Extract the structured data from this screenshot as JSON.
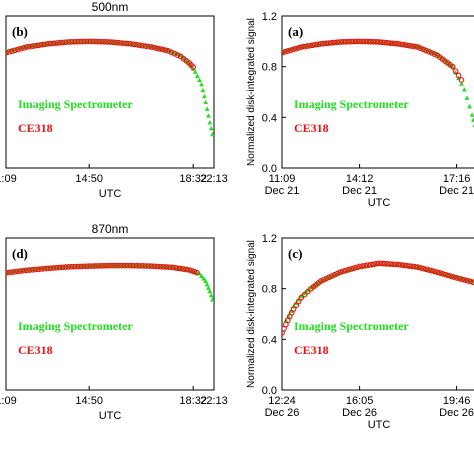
{
  "chart_data": [
    {
      "type": "scatter",
      "panel_label": "(b)",
      "title": "500nm",
      "xlabel": "UTC",
      "ylabel": "",
      "x_tick_labels": [
        "1:09",
        "14:50",
        "18:32",
        "22:13"
      ],
      "x_tick_dates": [],
      "y_tick_labels": [],
      "ylim": [
        0.0,
        1.2
      ],
      "legend": [
        "Imaging Spectrometer",
        "CE318"
      ],
      "series": [
        {
          "name": "Imaging Spectrometer",
          "color": "#22dd22",
          "x": [
            0,
            0.1,
            0.2,
            0.3,
            0.4,
            0.5,
            0.6,
            0.7,
            0.78,
            0.84,
            0.88,
            0.91,
            0.94,
            0.96,
            0.98,
            1.0
          ],
          "y": [
            0.92,
            0.96,
            0.98,
            0.995,
            1.0,
            0.995,
            0.98,
            0.96,
            0.93,
            0.89,
            0.83,
            0.76,
            0.66,
            0.52,
            0.36,
            0.22
          ]
        },
        {
          "name": "CE318",
          "color": "#ee1111",
          "x": [
            0,
            0.1,
            0.2,
            0.3,
            0.4,
            0.5,
            0.6,
            0.7,
            0.78,
            0.84,
            0.88,
            0.91
          ],
          "y": [
            0.91,
            0.955,
            0.98,
            0.995,
            1.0,
            0.995,
            0.98,
            0.955,
            0.925,
            0.88,
            0.83,
            0.78
          ]
        }
      ]
    },
    {
      "type": "scatter",
      "panel_label": "(a)",
      "title": "",
      "xlabel": "UTC",
      "ylabel": "Normalized disk-integrated signal",
      "x_tick_labels": [
        "11:09",
        "14:12",
        "17:16",
        ""
      ],
      "x_tick_dates": [
        "Dec 21",
        "Dec 21",
        "Dec 21",
        ""
      ],
      "y_tick_labels": [
        "0.0",
        "0.4",
        "0.8",
        "1.2"
      ],
      "ylim": [
        0.0,
        1.2
      ],
      "legend": [
        "Imaging Spectrometer",
        "CE318"
      ],
      "series": [
        {
          "name": "Imaging Spectrometer",
          "color": "#22dd22",
          "x": [
            0,
            0.1,
            0.2,
            0.3,
            0.4,
            0.5,
            0.6,
            0.7,
            0.8,
            0.88,
            0.94,
            0.98,
            1.0
          ],
          "y": [
            0.92,
            0.96,
            0.98,
            0.995,
            1.0,
            0.995,
            0.98,
            0.96,
            0.9,
            0.8,
            0.62,
            0.42,
            0.3
          ]
        },
        {
          "name": "CE318",
          "color": "#ee1111",
          "x": [
            0,
            0.1,
            0.2,
            0.3,
            0.4,
            0.5,
            0.6,
            0.7,
            0.8,
            0.88,
            0.94
          ],
          "y": [
            0.91,
            0.955,
            0.98,
            0.995,
            1.0,
            0.995,
            0.98,
            0.955,
            0.89,
            0.8,
            0.66
          ]
        }
      ]
    },
    {
      "type": "scatter",
      "panel_label": "(d)",
      "title": "870nm",
      "xlabel": "UTC",
      "ylabel": "",
      "x_tick_labels": [
        "1:09",
        "14:50",
        "18:32",
        "22:13"
      ],
      "x_tick_dates": [],
      "y_tick_labels": [],
      "ylim": [
        0.0,
        1.2
      ],
      "legend": [
        "Imaging Spectrometer",
        "CE318"
      ],
      "series": [
        {
          "name": "Imaging Spectrometer",
          "color": "#22dd22",
          "x": [
            0,
            0.1,
            0.2,
            0.3,
            0.4,
            0.5,
            0.6,
            0.7,
            0.8,
            0.88,
            0.93,
            0.96,
            0.98,
            1.0
          ],
          "y": [
            0.93,
            0.95,
            0.965,
            0.975,
            0.98,
            0.985,
            0.985,
            0.98,
            0.97,
            0.95,
            0.92,
            0.86,
            0.78,
            0.68
          ]
        },
        {
          "name": "CE318",
          "color": "#ee1111",
          "x": [
            0,
            0.1,
            0.2,
            0.3,
            0.4,
            0.5,
            0.6,
            0.7,
            0.8,
            0.88,
            0.93
          ],
          "y": [
            0.925,
            0.945,
            0.96,
            0.972,
            0.978,
            0.982,
            0.982,
            0.978,
            0.968,
            0.948,
            0.92
          ]
        }
      ]
    },
    {
      "type": "scatter",
      "panel_label": "(c)",
      "title": "",
      "xlabel": "UTC",
      "ylabel": "Normalized disk-integrated signal",
      "x_tick_labels": [
        "12:24",
        "16:05",
        "19:46",
        ""
      ],
      "x_tick_dates": [
        "Dec 26",
        "Dec 26",
        "Dec 26",
        ""
      ],
      "y_tick_labels": [
        "0.0",
        "0.4",
        "0.8",
        "1.2"
      ],
      "ylim": [
        0.0,
        1.2
      ],
      "legend": [
        "Imaging Spectrometer",
        "CE318"
      ],
      "series": [
        {
          "name": "Imaging Spectrometer",
          "color": "#22dd22",
          "x": [
            0.02,
            0.06,
            0.1,
            0.15,
            0.2,
            0.3,
            0.4,
            0.5,
            0.6,
            0.7,
            0.8,
            0.9,
            1.0
          ],
          "y": [
            0.55,
            0.66,
            0.74,
            0.81,
            0.86,
            0.93,
            0.97,
            0.995,
            0.99,
            0.97,
            0.93,
            0.89,
            0.85
          ]
        },
        {
          "name": "CE318",
          "color": "#ee1111",
          "x": [
            0.0,
            0.03,
            0.06,
            0.1,
            0.15,
            0.2,
            0.3,
            0.4,
            0.5,
            0.6,
            0.7,
            0.8,
            0.9,
            1.0
          ],
          "y": [
            0.45,
            0.55,
            0.64,
            0.73,
            0.8,
            0.86,
            0.93,
            0.975,
            1.0,
            0.99,
            0.97,
            0.93,
            0.885,
            0.845
          ]
        }
      ]
    }
  ]
}
